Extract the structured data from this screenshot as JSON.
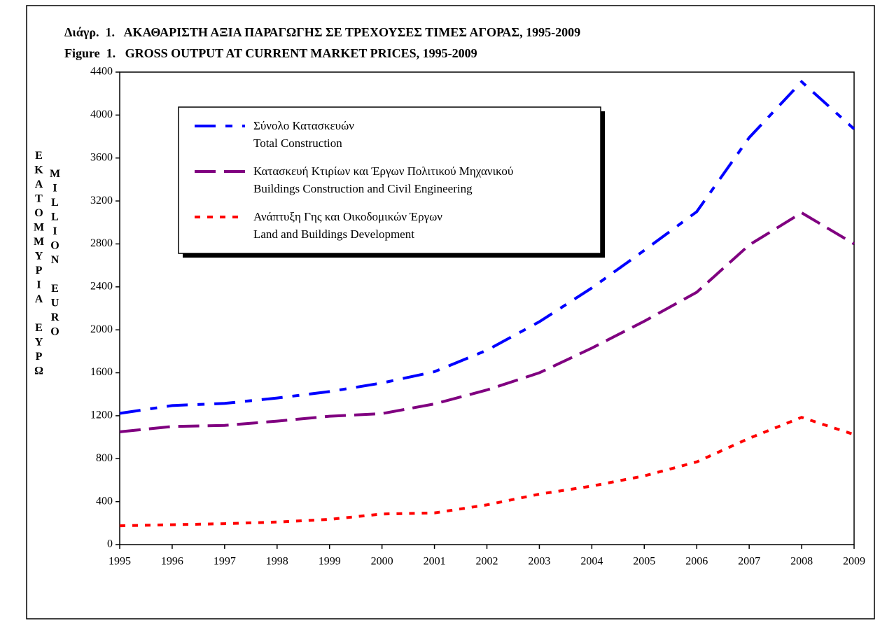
{
  "chart_data": {
    "type": "line",
    "title": "Διάγρ.  1.   ΑΚΑΘΑΡΙΣΤΗ ΑΞΙΑ ΠΑΡΑΓΩΓΗΣ ΣΕ ΤΡΕΧΟΥΣΕΣ ΤΙΜΕΣ ΑΓΟΡΑΣ, 1995-2009",
    "subtitle": "Figure  1.   GROSS OUTPUT AT CURRENT MARKET PRICES, 1995-2009",
    "y_label": [
      "ΕΚΑΤΟΜΜΥΡΙΑ ΕΥΡΩ",
      "MILLION EURO"
    ],
    "x": [
      1995,
      1996,
      1997,
      1998,
      1999,
      2000,
      2001,
      2002,
      2003,
      2004,
      2005,
      2006,
      2007,
      2008,
      2009
    ],
    "xlim": [
      1995,
      2009
    ],
    "xticks": [
      1995,
      1996,
      1997,
      1998,
      1999,
      2000,
      2001,
      2002,
      2003,
      2004,
      2005,
      2006,
      2007,
      2008,
      2009
    ],
    "ylim": [
      0,
      4400
    ],
    "yticks": [
      0,
      400,
      800,
      1200,
      1600,
      2000,
      2400,
      2800,
      3200,
      3600,
      4000,
      4400
    ],
    "series": [
      {
        "name": "Σύνολο Κατασκευών\nTotal Construction",
        "color": "#0000ff",
        "dash": "dash-dot",
        "values": [
          1222,
          1295,
          1315,
          1365,
          1425,
          1505,
          1610,
          1810,
          2075,
          2390,
          2740,
          3100,
          3790,
          4310,
          3870
        ]
      },
      {
        "name": "Κατασκευή Κτιρίων και Έργων Πολιτικού Μηχανικού\nBuildings Construction and Civil Engineering",
        "color": "#800080",
        "dash": "dash",
        "values": [
          1050,
          1100,
          1110,
          1150,
          1195,
          1220,
          1310,
          1440,
          1600,
          1830,
          2080,
          2350,
          2790,
          3090,
          2800
        ]
      },
      {
        "name": "Ανάπτυξη Γης και Οικοδομικών Έργων\nLand and Buildings Development",
        "color": "#ff0000",
        "dash": "dot",
        "values": [
          175,
          185,
          195,
          210,
          235,
          285,
          295,
          370,
          470,
          545,
          640,
          770,
          990,
          1185,
          1025
        ]
      }
    ]
  }
}
